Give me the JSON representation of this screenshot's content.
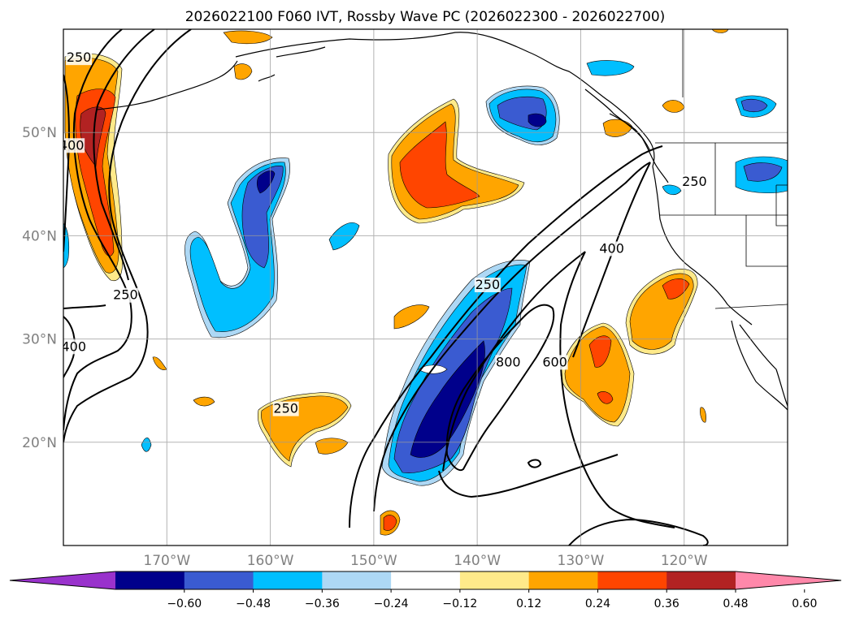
{
  "title": "2026022100 F060 IVT, Rossby Wave PC (2026022300 - 2026022700)",
  "map": {
    "lon_range": [
      -180,
      -110
    ],
    "lat_range": [
      10,
      60
    ],
    "lat_ticks": [
      {
        "value": 20,
        "label": "20°N"
      },
      {
        "value": 30,
        "label": "30°N"
      },
      {
        "value": 40,
        "label": "40°N"
      },
      {
        "value": 50,
        "label": "50°N"
      }
    ],
    "lon_ticks": [
      {
        "value": -170,
        "label": "170°W"
      },
      {
        "value": -160,
        "label": "160°W"
      },
      {
        "value": -150,
        "label": "150°W"
      },
      {
        "value": -140,
        "label": "140°W"
      },
      {
        "value": -130,
        "label": "130°W"
      },
      {
        "value": -120,
        "label": "120°W"
      }
    ],
    "grid": true,
    "ivt_contour_labels": [
      {
        "text": "250",
        "lon": -178.5,
        "lat": 57
      },
      {
        "text": "400",
        "lon": -179.2,
        "lat": 48.5
      },
      {
        "text": "250",
        "lon": -174,
        "lat": 34
      },
      {
        "text": "400",
        "lon": -179,
        "lat": 29
      },
      {
        "text": "250",
        "lon": -139,
        "lat": 35
      },
      {
        "text": "800",
        "lon": -137,
        "lat": 27.5
      },
      {
        "text": "600",
        "lon": -132.5,
        "lat": 27.5
      },
      {
        "text": "400",
        "lon": -127,
        "lat": 38.5
      },
      {
        "text": "250",
        "lon": -119,
        "lat": 45
      },
      {
        "text": "250",
        "lon": -158.5,
        "lat": 23
      }
    ]
  },
  "colorbar": {
    "colors": [
      "#9932cc",
      "#00008b",
      "#3a5bd1",
      "#00bfff",
      "#add8f5",
      "#ffffff",
      "#ffea8a",
      "#ffa500",
      "#ff4500",
      "#b22222",
      "#ff88aa"
    ],
    "ticks": [
      "−0.60",
      "−0.48",
      "−0.36",
      "−0.24",
      "−0.12",
      "0.12",
      "0.24",
      "0.36",
      "0.48",
      "0.60"
    ],
    "extend": "both"
  }
}
